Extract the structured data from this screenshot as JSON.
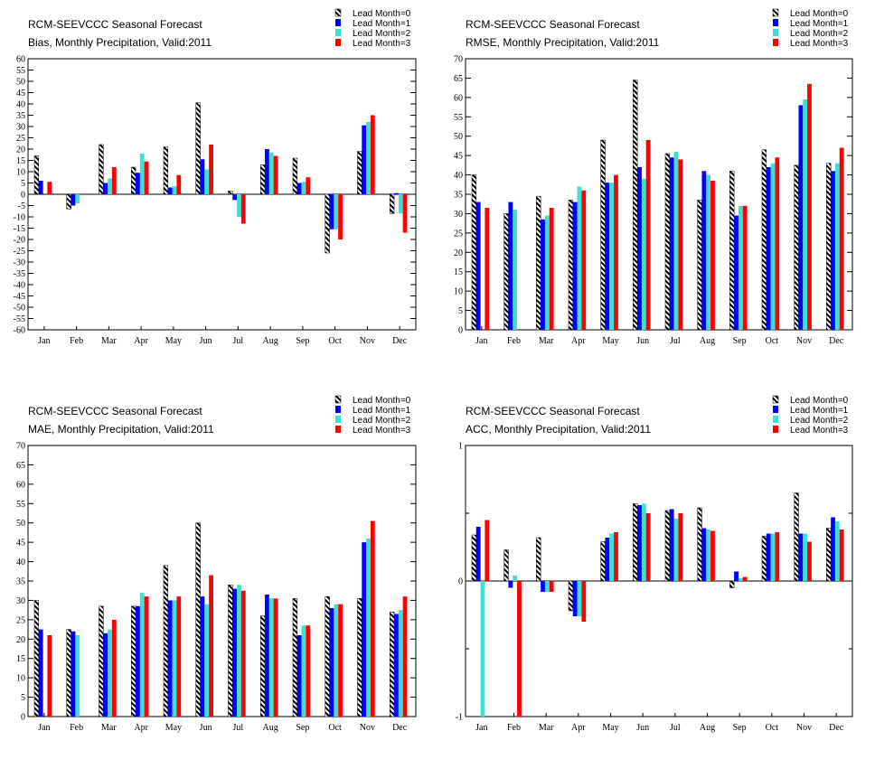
{
  "colors": {
    "lead1": "#0000ff",
    "lead2": "#40e0d0",
    "lead3": "#ff0000",
    "lead0_pattern": "black-white-hatch"
  },
  "legend": [
    "Lead Month=0",
    "Lead Month=1",
    "Lead Month=2",
    "Lead Month=3"
  ],
  "chart_data": [
    {
      "type": "bar",
      "title": "RCM-SEEVCCC Seasonal Forecast",
      "subtitle": "Bias, Monthly Precipitation, Valid:2011",
      "categories": [
        "Jan",
        "Feb",
        "Mar",
        "Apr",
        "May",
        "Jun",
        "Jul",
        "Aug",
        "Sep",
        "Oct",
        "Nov",
        "Dec"
      ],
      "ylim": [
        -60,
        60
      ],
      "yticks": [
        "-60",
        "-55",
        "-50",
        "-45",
        "-40",
        "-35",
        "-30",
        "-25",
        "-20",
        "-15",
        "-10",
        "-5",
        "0",
        "5",
        "10",
        "15",
        "20",
        "25",
        "30",
        "35",
        "40",
        "45",
        "50",
        "55",
        "60"
      ],
      "ytick_values": [
        -60,
        -55,
        -50,
        -45,
        -40,
        -35,
        -30,
        -25,
        -20,
        -15,
        -10,
        -5,
        0,
        5,
        10,
        15,
        20,
        25,
        30,
        35,
        40,
        45,
        50,
        55,
        60
      ],
      "legend_position": "top-right",
      "series": [
        {
          "name": "Lead Month=0",
          "values": [
            17,
            -6.5,
            22,
            12,
            21,
            40.5,
            1.5,
            13,
            16,
            -26,
            19,
            -8.5
          ]
        },
        {
          "name": "Lead Month=1",
          "values": [
            6,
            -5,
            5,
            9.5,
            3,
            15.5,
            -2.5,
            20,
            5,
            -15.5,
            30.5,
            0.5
          ]
        },
        {
          "name": "Lead Month=2",
          "values": [
            0,
            -4,
            7,
            18,
            3.5,
            11,
            -10,
            18.5,
            5.5,
            -15.5,
            32,
            -8.5
          ]
        },
        {
          "name": "Lead Month=3",
          "values": [
            5.5,
            0,
            12,
            14.5,
            8.5,
            22,
            -13,
            17,
            7.5,
            -20,
            35,
            -17
          ]
        }
      ]
    },
    {
      "type": "bar",
      "title": "RCM-SEEVCCC Seasonal Forecast",
      "subtitle": "RMSE, Monthly Precipitation, Valid:2011",
      "categories": [
        "Jan",
        "Feb",
        "Mar",
        "Apr",
        "May",
        "Jun",
        "Jul",
        "Aug",
        "Sep",
        "Oct",
        "Nov",
        "Dec"
      ],
      "ylim": [
        0,
        70
      ],
      "yticks": [
        "0",
        "5",
        "10",
        "15",
        "20",
        "25",
        "30",
        "35",
        "40",
        "45",
        "50",
        "55",
        "60",
        "65",
        "70"
      ],
      "ytick_values": [
        0,
        5,
        10,
        15,
        20,
        25,
        30,
        35,
        40,
        45,
        50,
        55,
        60,
        65,
        70
      ],
      "legend_position": "top-right",
      "series": [
        {
          "name": "Lead Month=0",
          "values": [
            40,
            30,
            34.5,
            33.5,
            49,
            64.5,
            45.5,
            33.5,
            41,
            46.5,
            42.5,
            43
          ]
        },
        {
          "name": "Lead Month=1",
          "values": [
            33,
            33,
            28.5,
            33,
            38,
            42,
            44.5,
            41,
            29.5,
            42,
            58,
            41
          ]
        },
        {
          "name": "Lead Month=2",
          "values": [
            0,
            31,
            29.5,
            37,
            38,
            39,
            46,
            40,
            32,
            43,
            59.5,
            43
          ]
        },
        {
          "name": "Lead Month=3",
          "values": [
            31.5,
            0,
            31.5,
            36,
            40,
            49,
            44,
            38.5,
            32,
            44.5,
            63.5,
            47
          ]
        }
      ]
    },
    {
      "type": "bar",
      "title": "RCM-SEEVCCC Seasonal Forecast",
      "subtitle": "MAE, Monthly Precipitation, Valid:2011",
      "categories": [
        "Jan",
        "Feb",
        "Mar",
        "Apr",
        "May",
        "Jun",
        "Jul",
        "Aug",
        "Sep",
        "Oct",
        "Nov",
        "Dec"
      ],
      "ylim": [
        0,
        70
      ],
      "yticks": [
        "0",
        "5",
        "10",
        "15",
        "20",
        "25",
        "30",
        "35",
        "40",
        "45",
        "50",
        "55",
        "60",
        "65",
        "70"
      ],
      "ytick_values": [
        0,
        5,
        10,
        15,
        20,
        25,
        30,
        35,
        40,
        45,
        50,
        55,
        60,
        65,
        70
      ],
      "legend_position": "top-right",
      "series": [
        {
          "name": "Lead Month=0",
          "values": [
            30,
            22.5,
            28.5,
            28.5,
            39,
            50,
            34,
            26,
            30.5,
            31,
            30.5,
            27
          ]
        },
        {
          "name": "Lead Month=1",
          "values": [
            22.5,
            22,
            21.5,
            28.5,
            30,
            31,
            33,
            31.5,
            21,
            28,
            45,
            26.5
          ]
        },
        {
          "name": "Lead Month=2",
          "values": [
            0,
            21,
            22.5,
            32,
            30,
            29,
            34,
            30.5,
            23.5,
            29,
            46,
            27.5
          ]
        },
        {
          "name": "Lead Month=3",
          "values": [
            21,
            0,
            25,
            31,
            31,
            36.5,
            32.5,
            30.5,
            23.5,
            29,
            50.5,
            31
          ]
        }
      ]
    },
    {
      "type": "bar",
      "title": "RCM-SEEVCCC Seasonal Forecast",
      "subtitle": "ACC, Monthly Precipitation, Valid:2011",
      "categories": [
        "Jan",
        "Feb",
        "Mar",
        "Apr",
        "May",
        "Jun",
        "Jul",
        "Aug",
        "Sep",
        "Oct",
        "Nov",
        "Dec"
      ],
      "ylim": [
        -1,
        1
      ],
      "yticks": [
        "-1",
        "0",
        "1"
      ],
      "ytick_values": [
        -1,
        0,
        1
      ],
      "legend_position": "top-right",
      "series": [
        {
          "name": "Lead Month=0",
          "values": [
            0.34,
            0.23,
            0.32,
            -0.22,
            0.29,
            0.57,
            0.52,
            0.54,
            -0.05,
            0.33,
            0.65,
            0.39
          ]
        },
        {
          "name": "Lead Month=1",
          "values": [
            0.4,
            -0.05,
            -0.08,
            -0.26,
            0.32,
            0.56,
            0.53,
            0.39,
            0.07,
            0.35,
            0.35,
            0.47
          ]
        },
        {
          "name": "Lead Month=2",
          "values": [
            -1.0,
            0.04,
            -0.08,
            -0.26,
            0.35,
            0.57,
            0.46,
            0.38,
            0.02,
            0.35,
            0.35,
            0.44
          ]
        },
        {
          "name": "Lead Month=3",
          "values": [
            0.45,
            -1.0,
            -0.08,
            -0.3,
            0.36,
            0.5,
            0.5,
            0.37,
            0.03,
            0.36,
            0.29,
            0.38
          ]
        }
      ]
    }
  ]
}
